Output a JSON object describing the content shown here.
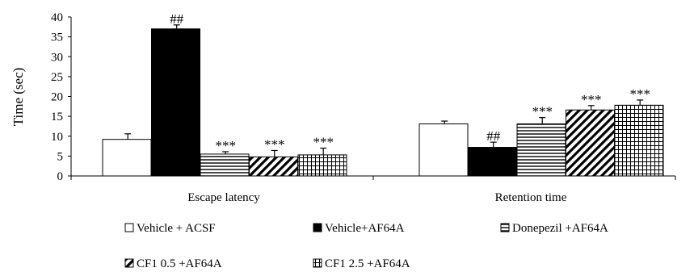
{
  "chart_data": {
    "type": "bar",
    "ylabel": "Time (sec)",
    "ylim": [
      0,
      40
    ],
    "yticks": [
      0,
      5,
      10,
      15,
      20,
      25,
      30,
      35,
      40
    ],
    "grid": false,
    "legend_position": "bottom",
    "categories": [
      "Escape latency",
      "Retention time"
    ],
    "series": [
      {
        "name": "Vehicle + ACSF",
        "pattern": "white",
        "values": [
          9.2,
          13.1
        ],
        "errors": [
          1.4,
          0.7
        ],
        "annotations": [
          "",
          ""
        ]
      },
      {
        "name": "Vehicle+AF64A",
        "pattern": "black",
        "values": [
          37.0,
          7.2
        ],
        "errors": [
          1.0,
          1.3
        ],
        "annotations": [
          "##",
          "##"
        ]
      },
      {
        "name": "Donepezil +AF64A",
        "pattern": "hlines",
        "values": [
          5.5,
          13.1
        ],
        "errors": [
          0.6,
          1.6
        ],
        "annotations": [
          "***",
          "***"
        ]
      },
      {
        "name": "CF1 0.5 +AF64A",
        "pattern": "diag",
        "values": [
          4.8,
          16.6
        ],
        "errors": [
          1.6,
          1.1
        ],
        "annotations": [
          "***",
          "***"
        ]
      },
      {
        "name": "CF1 2.5 +AF64A",
        "pattern": "grid",
        "values": [
          5.3,
          17.8
        ],
        "errors": [
          1.7,
          1.3
        ],
        "annotations": [
          "***",
          "***"
        ]
      }
    ]
  }
}
